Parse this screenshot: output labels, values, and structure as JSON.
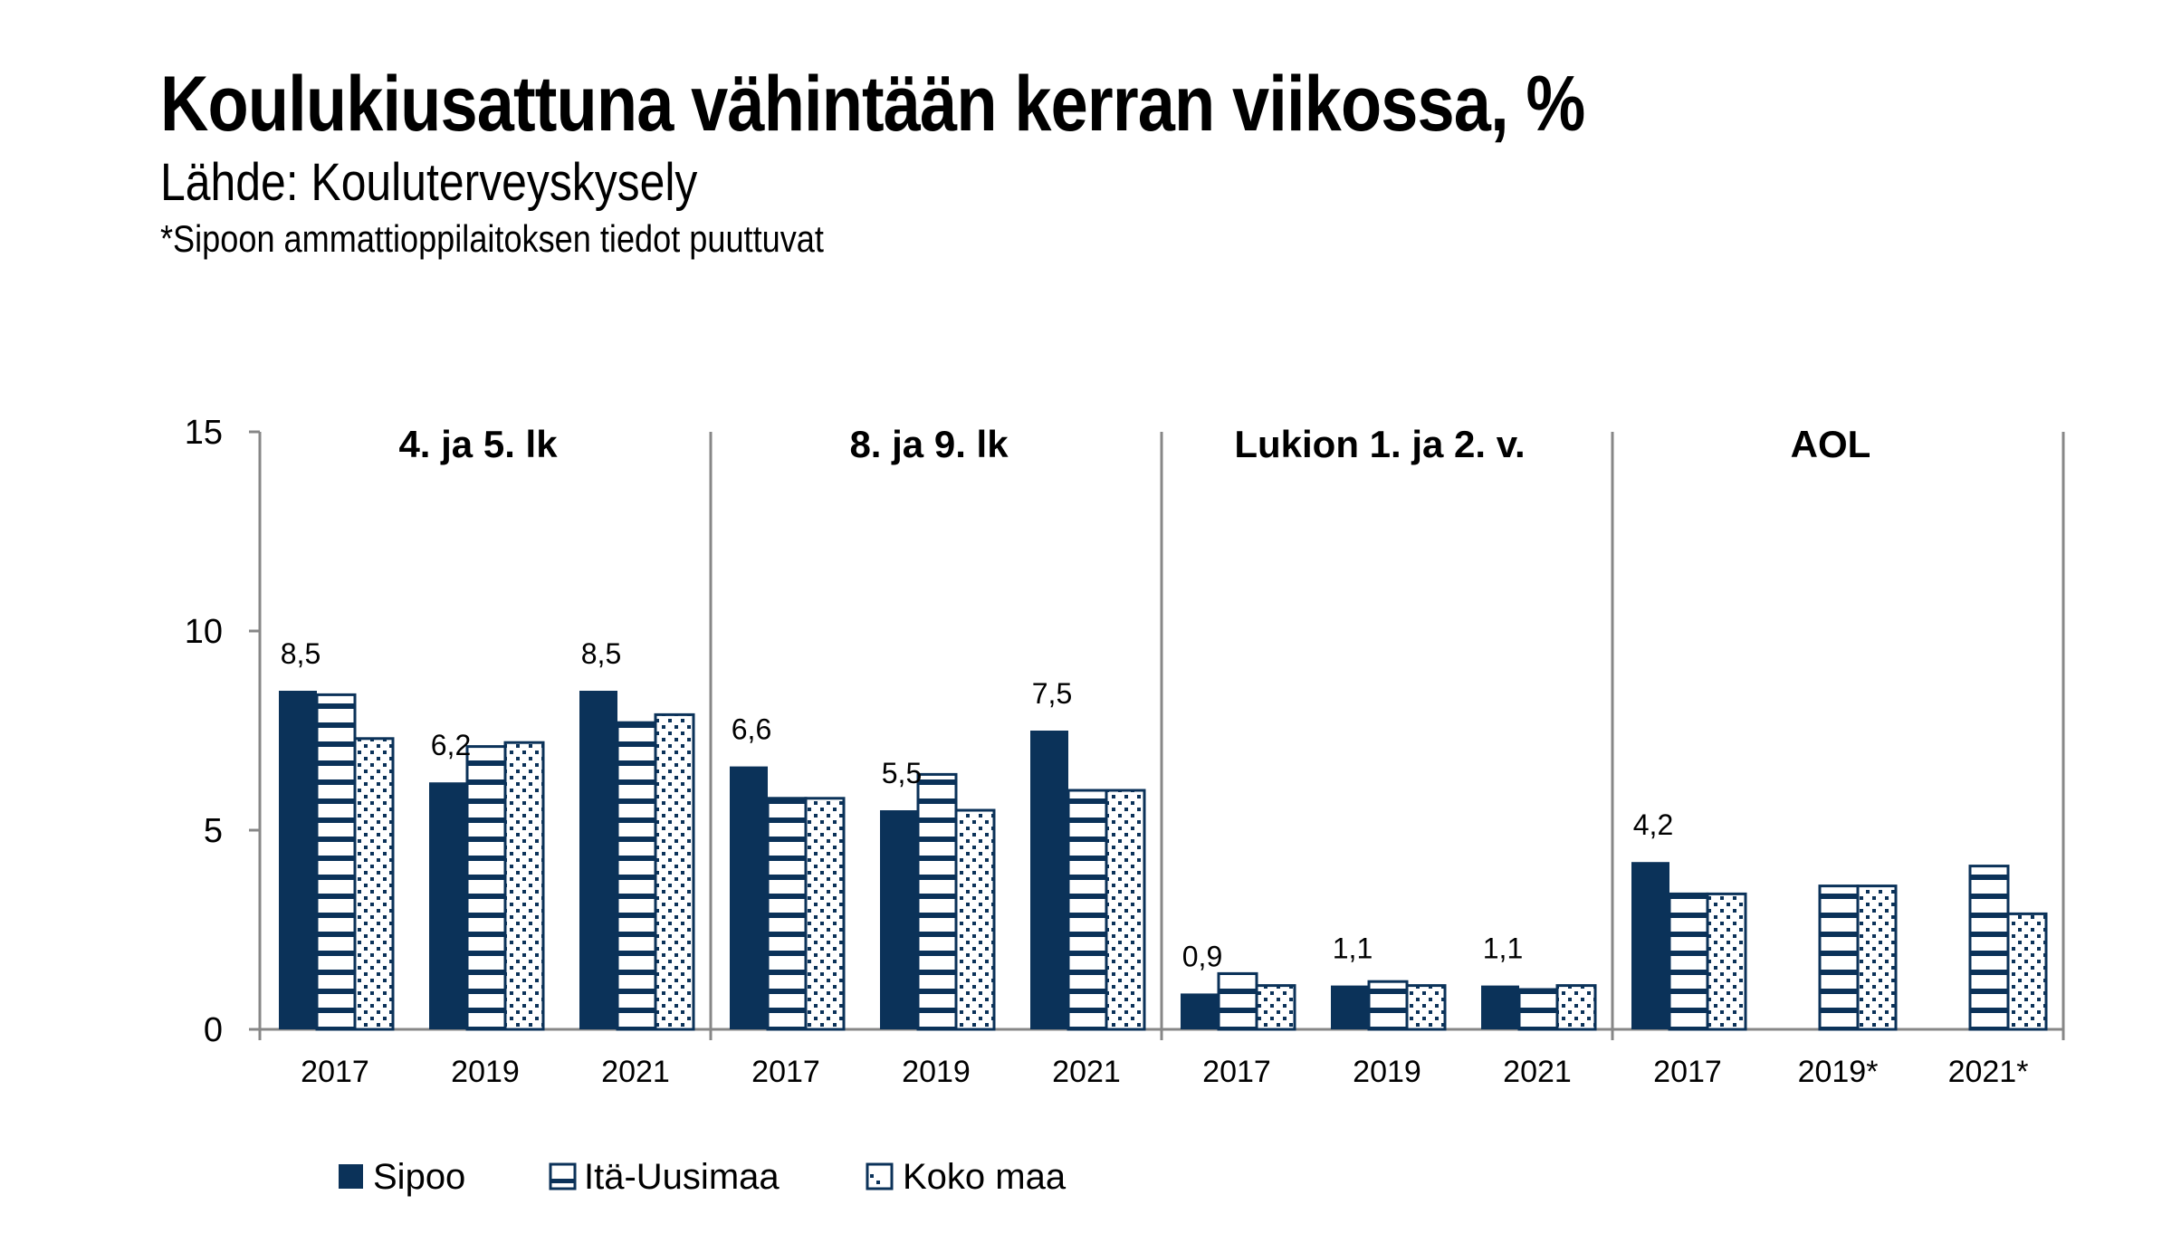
{
  "header": {
    "title": "Koulukiusattuna vähintään kerran viikossa, %",
    "subtitle": "Lähde: Kouluterveyskysely",
    "footnote": "*Sipoon ammattioppilaitoksen tiedot puuttuvat"
  },
  "colors": {
    "navy": "#0b3259",
    "axis": "#878787"
  },
  "chart_data": {
    "type": "bar",
    "title": "Koulukiusattuna vähintään kerran viikossa, %",
    "subtitle": "Lähde: Kouluterveyskysely",
    "xlabel": "",
    "ylabel": "",
    "ylim": [
      0,
      15
    ],
    "yticks": [
      0,
      5,
      10,
      15
    ],
    "grid": false,
    "legend_position": "bottom-left",
    "groups": [
      {
        "label": "4. ja 5. lk",
        "categories": [
          "2017",
          "2019",
          "2021"
        ],
        "series": [
          {
            "name": "Sipoo",
            "values": [
              8.5,
              6.2,
              8.5
            ]
          },
          {
            "name": "Itä-Uusimaa",
            "values": [
              8.4,
              7.1,
              7.7
            ]
          },
          {
            "name": "Koko maa",
            "values": [
              7.3,
              7.2,
              7.9
            ]
          }
        ],
        "data_labels": [
          "8,5",
          "6,2",
          "8,5"
        ]
      },
      {
        "label": "8. ja 9. lk",
        "categories": [
          "2017",
          "2019",
          "2021"
        ],
        "series": [
          {
            "name": "Sipoo",
            "values": [
              6.6,
              5.5,
              7.5
            ]
          },
          {
            "name": "Itä-Uusimaa",
            "values": [
              5.8,
              6.4,
              6.0
            ]
          },
          {
            "name": "Koko maa",
            "values": [
              5.8,
              5.5,
              6.0
            ]
          }
        ],
        "data_labels": [
          "6,6",
          "5,5",
          "7,5"
        ]
      },
      {
        "label": "Lukion 1. ja 2. v.",
        "categories": [
          "2017",
          "2019",
          "2021"
        ],
        "series": [
          {
            "name": "Sipoo",
            "values": [
              0.9,
              1.1,
              1.1
            ]
          },
          {
            "name": "Itä-Uusimaa",
            "values": [
              1.4,
              1.2,
              1.0
            ]
          },
          {
            "name": "Koko maa",
            "values": [
              1.1,
              1.1,
              1.1
            ]
          }
        ],
        "data_labels": [
          "0,9",
          "1,1",
          "1,1"
        ]
      },
      {
        "label": "AOL",
        "categories": [
          "2017",
          "2019*",
          "2021*"
        ],
        "series": [
          {
            "name": "Sipoo",
            "values": [
              4.2,
              null,
              null
            ]
          },
          {
            "name": "Itä-Uusimaa",
            "values": [
              3.4,
              3.6,
              4.1
            ]
          },
          {
            "name": "Koko maa",
            "values": [
              3.4,
              3.6,
              2.9
            ]
          }
        ],
        "data_labels": [
          "4,2",
          null,
          null
        ]
      }
    ],
    "legend": [
      {
        "name": "Sipoo",
        "pattern": "solid"
      },
      {
        "name": "Itä-Uusimaa",
        "pattern": "horizontal-stripes"
      },
      {
        "name": "Koko maa",
        "pattern": "dots"
      }
    ]
  }
}
